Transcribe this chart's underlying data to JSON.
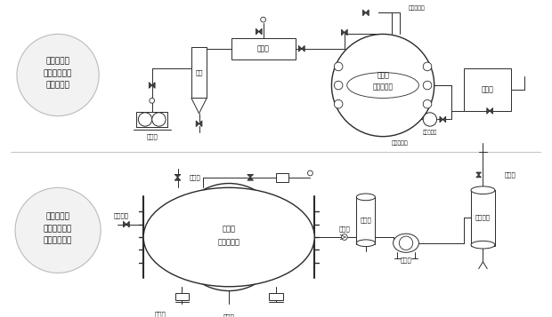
{
  "bg_color": "#ffffff",
  "line_color": "#2a2a2a",
  "text_color": "#111111",
  "top_label": [
    "热水加热、",
    "溶剂回收真空",
    "干燥系统图"
  ],
  "bot_label": [
    "蒸汽加热、",
    "溶剂不回收真",
    "空干燥系统图"
  ],
  "top_components": {
    "vacuum_pump_label": "真空泵",
    "tank_label": "贮罐",
    "condenser_label": "冷凝器",
    "dryer_label": [
      "热水型",
      "真空干燥器"
    ],
    "filter_valve_label": "过滤放空阀",
    "hot_water_pump_label": "热水管道泵",
    "hot_water_tank_label": "热水箱"
  },
  "bot_components": {
    "dryer_label": [
      "蒸汽型",
      "真空干燥器"
    ],
    "steam_in_label": "蒸汽进口",
    "disinfect_label": "消毒口",
    "drain_label": "疏水口",
    "sewage_label": "排污口",
    "check_valve_label": "逆止阀",
    "buffer_tank_label": "缓冲罐",
    "vacuum_pump_label": "真空泵",
    "exhaust_label": "排气管",
    "separator_label": "水分离器"
  }
}
